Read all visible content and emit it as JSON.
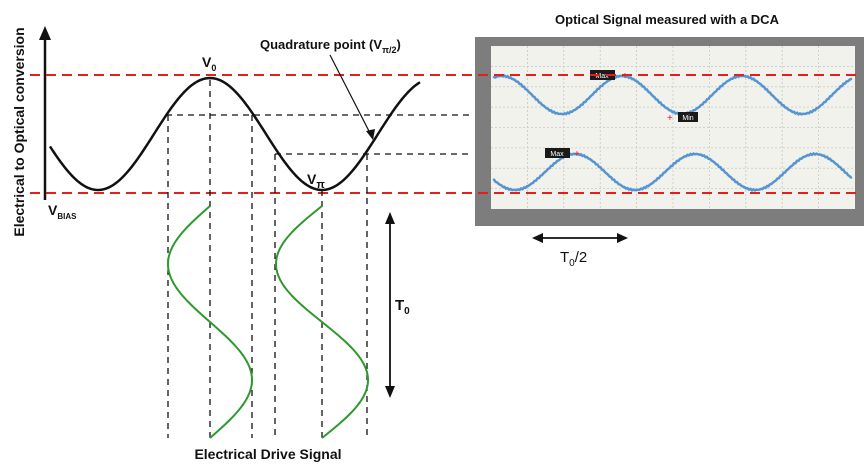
{
  "labels": {
    "y_axis_title": "Electrical to Optical conversion",
    "v0": {
      "main": "V",
      "sub": "0"
    },
    "vbias": {
      "main": "V",
      "sub": "BIAS"
    },
    "vpi": {
      "main": "V",
      "sub": "π"
    },
    "quadrature": {
      "prefix": "Quadrature point (V",
      "sub": "π/2",
      "suffix": ")"
    },
    "dca_title": "Optical Signal measured with a DCA",
    "t0_half": {
      "main": "T",
      "sub": "0",
      "suffix": "/2"
    },
    "t0": {
      "main": "T",
      "sub": "0"
    },
    "drive_title": "Electrical Drive Signal"
  },
  "markers": {
    "upper_max": "Max",
    "upper_min": "Min",
    "lower_max": "Max"
  },
  "colors": {
    "transfer_curve": "#111111",
    "drive_signal": "#2e9a2e",
    "reference_lines": "#e0201c",
    "optical_trace": "#4d8fd0",
    "dca_bezel": "#7d7d7d",
    "dca_screen": "#f2f2ec",
    "dca_grid": "#c8c8c0"
  }
}
